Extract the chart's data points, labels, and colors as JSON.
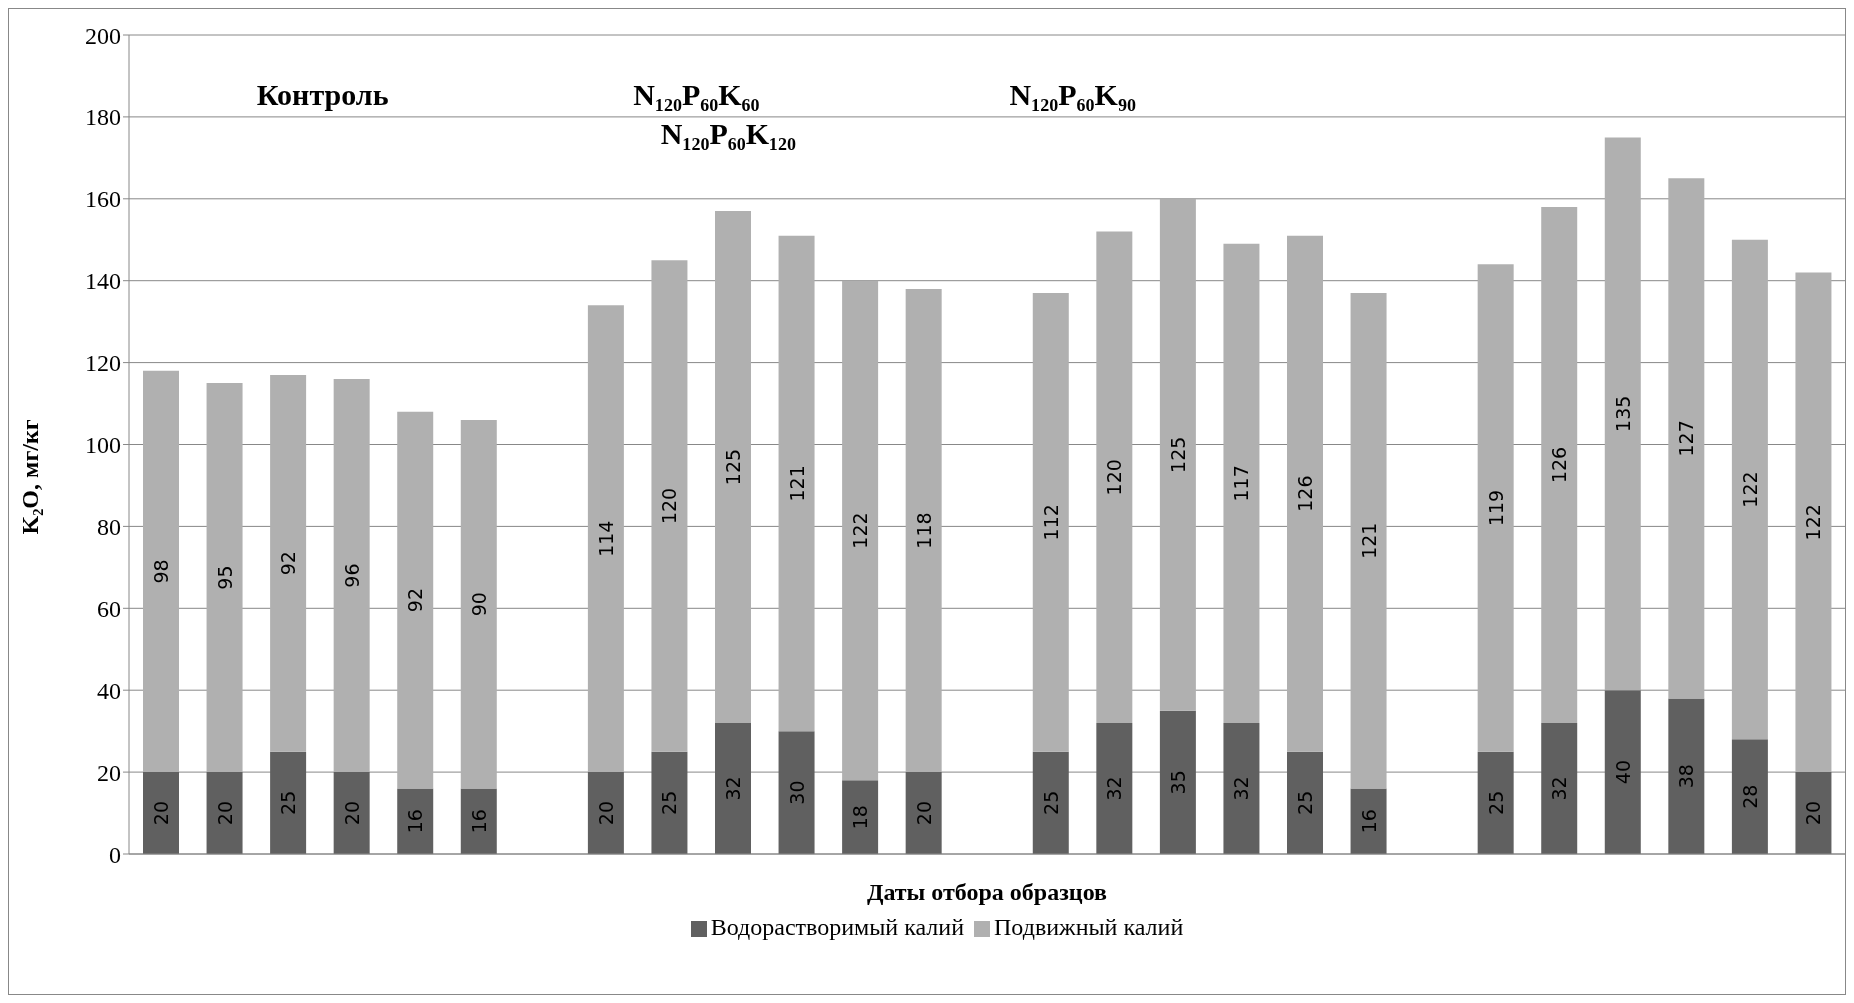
{
  "chart_data": {
    "type": "bar",
    "stacked": true,
    "xlabel": "Даты отбора образцов",
    "ylabel": "K₂O, мг/кг",
    "annotations": [
      "Контроль",
      "N₁₂₀P₆₀K₆₀",
      "N₁₂₀P₆₀K₁₂₀",
      "N₁₂₀P₆₀K₉₀"
    ],
    "categories": [
      null,
      null,
      null,
      null,
      null,
      null,
      null,
      null,
      null,
      null,
      null,
      null,
      null,
      null,
      null,
      null,
      null,
      null,
      null,
      null,
      null,
      null,
      null,
      null,
      null,
      null,
      null
    ],
    "series": [
      {
        "name": "Водорастворимый калий",
        "color": "#606060",
        "values": [
          20,
          20,
          25,
          20,
          16,
          16,
          null,
          20,
          25,
          32,
          30,
          18,
          20,
          null,
          25,
          32,
          35,
          32,
          25,
          16,
          null,
          25,
          32,
          40,
          38,
          28,
          20
        ]
      },
      {
        "name": "Подвижный калий",
        "color": "#b0b0b0",
        "values": [
          98,
          95,
          92,
          96,
          92,
          90,
          null,
          114,
          120,
          125,
          121,
          122,
          118,
          null,
          112,
          120,
          125,
          117,
          126,
          121,
          null,
          119,
          126,
          135,
          127,
          122,
          122
        ]
      }
    ],
    "ylim": [
      0,
      200
    ],
    "yticks": [
      0,
      20,
      40,
      60,
      80,
      100,
      120,
      140,
      160,
      180,
      200
    ],
    "grid": "y",
    "legend": "bottom",
    "data_labels": true
  }
}
